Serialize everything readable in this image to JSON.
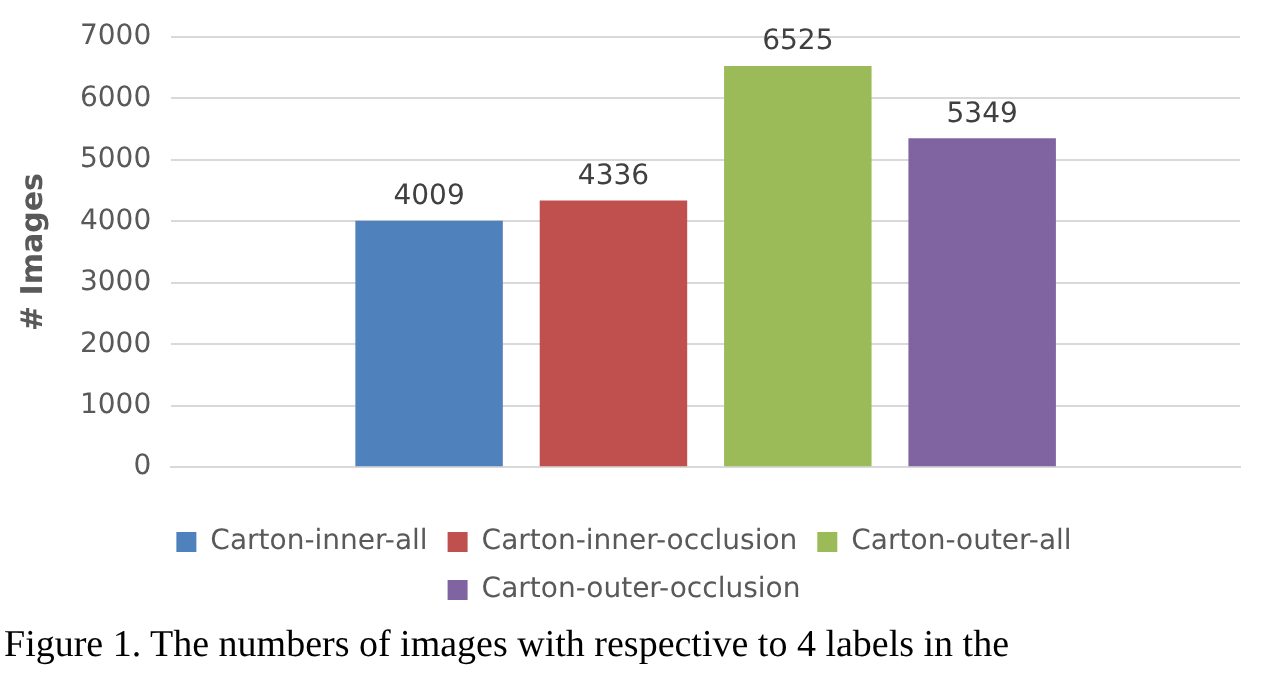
{
  "chart_data": {
    "type": "bar",
    "ylabel": "# Images",
    "categories": [
      null
    ],
    "series": [
      {
        "name": "Carton-inner-all",
        "color": "#4f81bd",
        "values": [
          4009
        ]
      },
      {
        "name": "Carton-inner-occlusion",
        "color": "#c0504d",
        "values": [
          4336
        ]
      },
      {
        "name": "Carton-outer-all",
        "color": "#9bbb59",
        "values": [
          6525
        ]
      },
      {
        "name": "Carton-outer-occlusion",
        "color": "#8064a2",
        "values": [
          5349
        ]
      }
    ],
    "ylim": [
      0,
      7000
    ],
    "yticks": [
      0,
      1000,
      2000,
      3000,
      4000,
      5000,
      6000,
      7000
    ],
    "grid": "y",
    "legend": "bottom",
    "data_labels": true,
    "annotations": [
      "Figure 1. The numbers of images with respective to 4 labels in the"
    ]
  }
}
